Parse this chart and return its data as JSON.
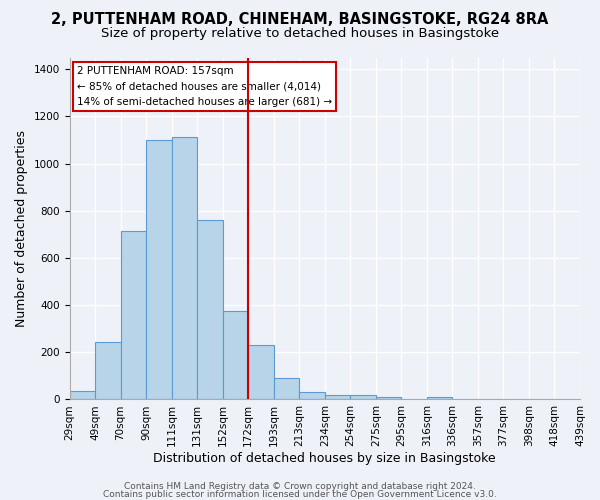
{
  "title1": "2, PUTTENHAM ROAD, CHINEHAM, BASINGSTOKE, RG24 8RA",
  "title2": "Size of property relative to detached houses in Basingstoke",
  "xlabel": "Distribution of detached houses by size in Basingstoke",
  "ylabel": "Number of detached properties",
  "bins": [
    "29sqm",
    "49sqm",
    "70sqm",
    "90sqm",
    "111sqm",
    "131sqm",
    "152sqm",
    "172sqm",
    "193sqm",
    "213sqm",
    "234sqm",
    "254sqm",
    "275sqm",
    "295sqm",
    "316sqm",
    "336sqm",
    "357sqm",
    "377sqm",
    "398sqm",
    "418sqm",
    "439sqm"
  ],
  "values": [
    35,
    245,
    715,
    1100,
    1115,
    760,
    375,
    230,
    90,
    30,
    20,
    20,
    10,
    0,
    10,
    0,
    0,
    0,
    0,
    0
  ],
  "bar_color": "#b8d4e8",
  "bar_edge_color": "#5b9bd5",
  "vline_color": "#cc0000",
  "annotation_lines": [
    "2 PUTTENHAM ROAD: 157sqm",
    "← 85% of detached houses are smaller (4,014)",
    "14% of semi-detached houses are larger (681) →"
  ],
  "ylim": [
    0,
    1450
  ],
  "yticks": [
    0,
    200,
    400,
    600,
    800,
    1000,
    1200,
    1400
  ],
  "footer1": "Contains HM Land Registry data © Crown copyright and database right 2024.",
  "footer2": "Contains public sector information licensed under the Open Government Licence v3.0.",
  "bg_color": "#eef2f8",
  "grid_color": "#ffffff",
  "title_fontsize": 10.5,
  "subtitle_fontsize": 9.5,
  "axis_label_fontsize": 9,
  "tick_fontsize": 7.5,
  "footer_fontsize": 6.5,
  "vline_bin_index": 7
}
